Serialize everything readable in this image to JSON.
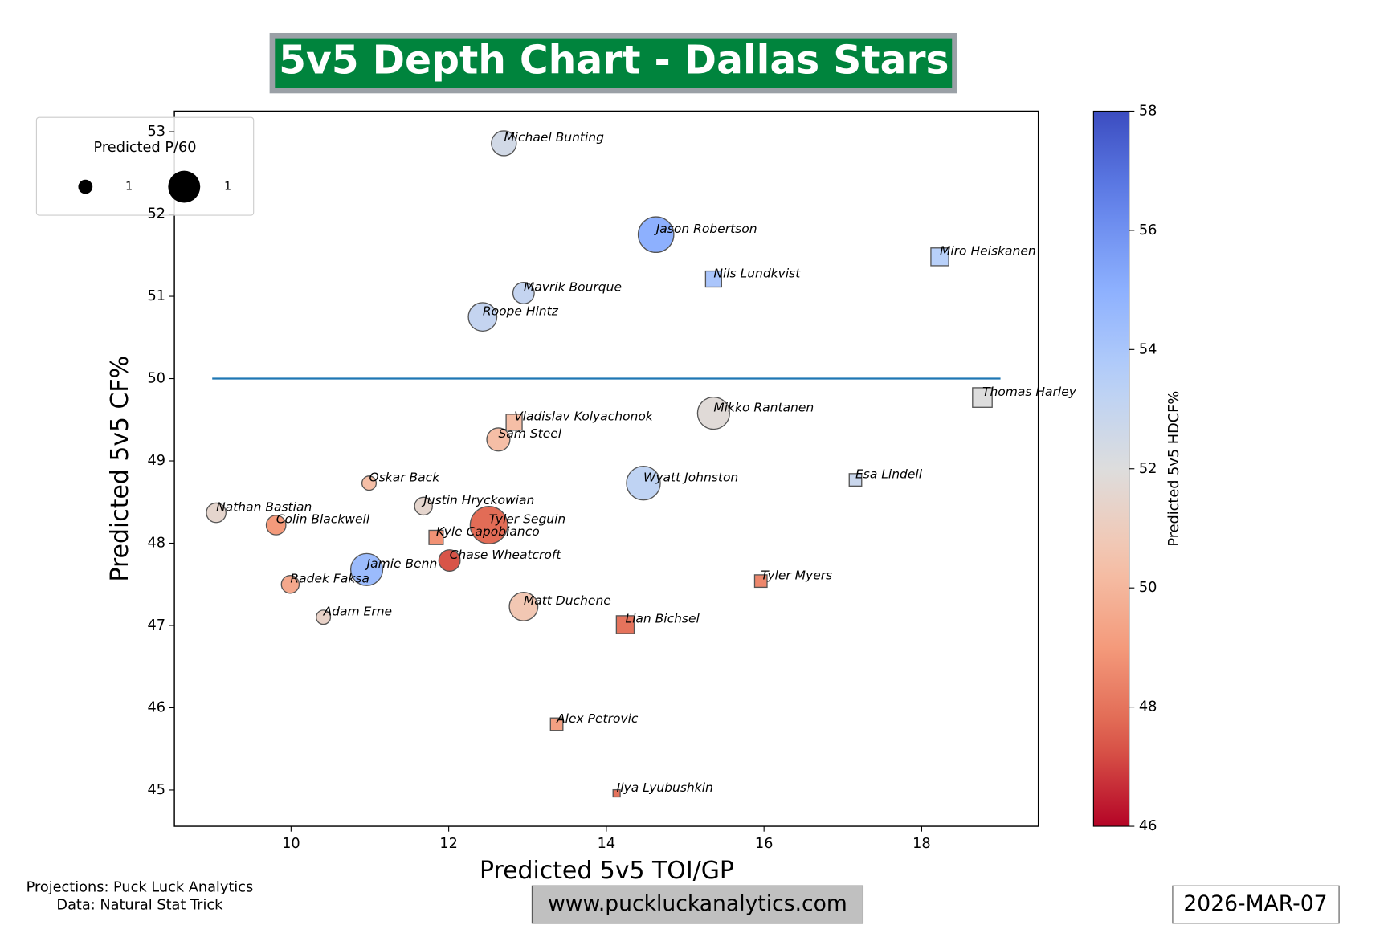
{
  "chart_data": {
    "type": "scatter",
    "title": "5v5 Depth Chart - Dallas Stars",
    "xlabel": "Predicted 5v5 TOI/GP",
    "ylabel": "Predicted 5v5 CF%",
    "xlim": [
      8.52,
      19.48
    ],
    "ylim": [
      44.56,
      53.25
    ],
    "xticks": [
      10,
      12,
      14,
      16,
      18
    ],
    "yticks": [
      45,
      46,
      47,
      48,
      49,
      50,
      51,
      52,
      53
    ],
    "hline": {
      "y": 50,
      "xmin": 9,
      "xmax": 19,
      "color": "#1f77b4"
    },
    "colorbar": {
      "label": "Predicted 5v5 HDCF%",
      "lim": [
        46,
        58
      ],
      "ticks": [
        46,
        48,
        50,
        52,
        54,
        56,
        58
      ],
      "colormap": "coolwarm_r"
    },
    "legend": {
      "title": "Predicted P/60",
      "loc": "upper left",
      "labels": [
        "1",
        "1"
      ],
      "sizes": [
        64,
        324
      ]
    },
    "series": [
      {
        "marker": "o",
        "labels": [
          "Michael Bunting",
          "Jason Robertson",
          "Mavrik Bourque",
          "Roope Hintz",
          "Mikko Rantanen",
          "Sam Steel",
          "Oskar Back",
          "Wyatt Johnston",
          "Nathan Bastian",
          "Justin Hryckowian",
          "Colin Blackwell",
          "Tyler Seguin",
          "Chase Wheatcroft",
          "Jamie Benn",
          "Radek Faksa",
          "Adam Erne",
          "Matt Duchene"
        ],
        "x": [
          12.7,
          14.63,
          12.95,
          12.43,
          15.36,
          12.63,
          10.99,
          14.47,
          9.05,
          11.68,
          9.81,
          12.51,
          12.01,
          10.96,
          9.99,
          10.41,
          12.95
        ],
        "y": [
          52.86,
          51.75,
          51.04,
          50.75,
          49.58,
          49.26,
          48.73,
          48.73,
          48.37,
          48.45,
          48.22,
          48.22,
          47.79,
          47.68,
          47.5,
          47.1,
          47.23
        ],
        "color_values": [
          52.5,
          55.0,
          53.0,
          53.0,
          51.8,
          50.3,
          50.3,
          53.2,
          51.5,
          51.5,
          49.0,
          47.8,
          47.3,
          54.5,
          49.5,
          51.3,
          50.7
        ],
        "sizes": [
          196,
          400,
          144,
          256,
          324,
          169,
          64,
          361,
          121,
          100,
          121,
          441,
          144,
          324,
          100,
          64,
          256
        ]
      },
      {
        "marker": "s",
        "labels": [
          "Miro Heiskanen",
          "Nils Lundkvist",
          "Thomas Harley",
          "Vladislav Kolyachonok",
          "Esa Lindell",
          "Kyle Capobianco",
          "Tyler Myers",
          "Lian Bichsel",
          "Alex Petrovic",
          "Ilya Lyubushkin"
        ],
        "x": [
          18.23,
          15.36,
          18.77,
          12.83,
          17.16,
          11.84,
          15.96,
          14.24,
          13.37,
          14.13
        ],
        "y": [
          51.48,
          51.21,
          49.77,
          49.47,
          48.77,
          48.07,
          47.54,
          47.01,
          45.8,
          44.96
        ],
        "color_values": [
          53.5,
          54.0,
          52.0,
          50.3,
          52.8,
          48.8,
          48.5,
          48.0,
          49.2,
          48.0
        ],
        "sizes": [
          100,
          81,
          121,
          81,
          49,
          64,
          49,
          100,
          49,
          16
        ]
      }
    ]
  },
  "footer": {
    "credits": [
      "Projections: Puck Luck Analytics",
      "Data: Natural Stat Trick"
    ],
    "website": "www.puckluckanalytics.com",
    "date": "2026-MAR-07"
  }
}
